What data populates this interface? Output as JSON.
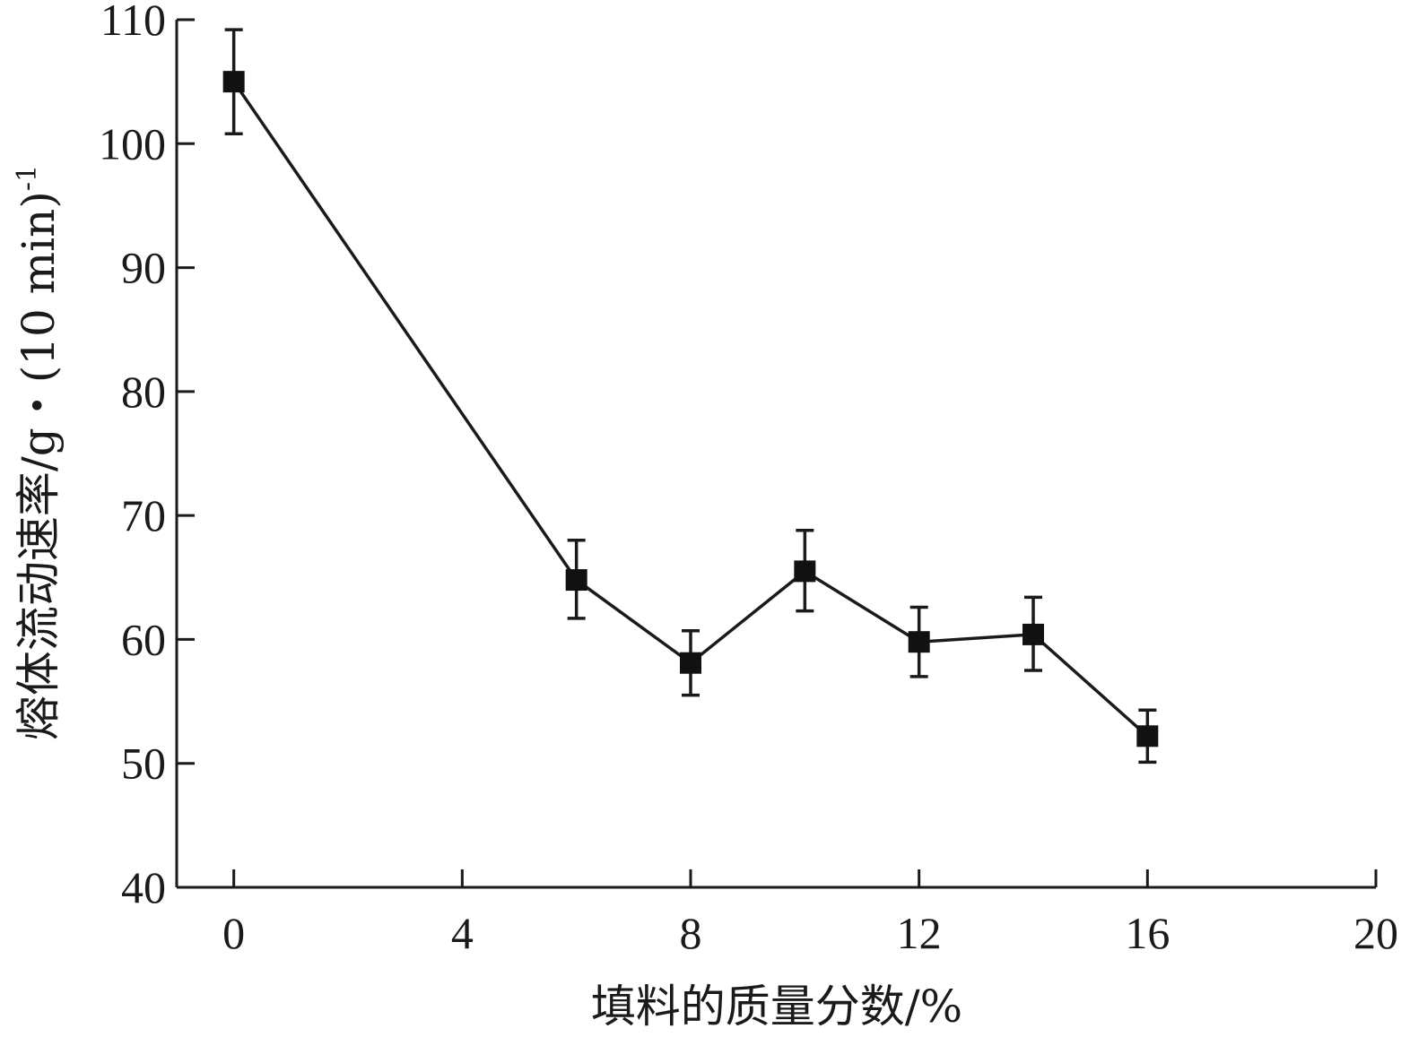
{
  "chart_data": {
    "type": "line",
    "xlabel": "填料的质量分数/%",
    "ylabel": "熔体流动速率/g・(10 min)",
    "ylabel_superscript": "-1",
    "xlim": [
      -1,
      20
    ],
    "ylim": [
      40,
      110
    ],
    "xticks": [
      0,
      4,
      8,
      12,
      16,
      20
    ],
    "yticks": [
      40,
      50,
      60,
      70,
      80,
      90,
      100,
      110
    ],
    "grid": false,
    "legend": "none",
    "marker": "square",
    "color": "#111111",
    "series": [
      {
        "x": [
          0,
          6,
          8,
          10,
          12,
          14,
          16
        ],
        "values": [
          105.0,
          64.8,
          58.1,
          65.5,
          59.8,
          60.4,
          52.2
        ],
        "err_low": [
          100.8,
          61.7,
          55.5,
          62.3,
          57.0,
          57.5,
          50.1
        ],
        "err_high": [
          109.2,
          68.0,
          60.7,
          68.8,
          62.6,
          63.4,
          54.3
        ]
      }
    ]
  }
}
